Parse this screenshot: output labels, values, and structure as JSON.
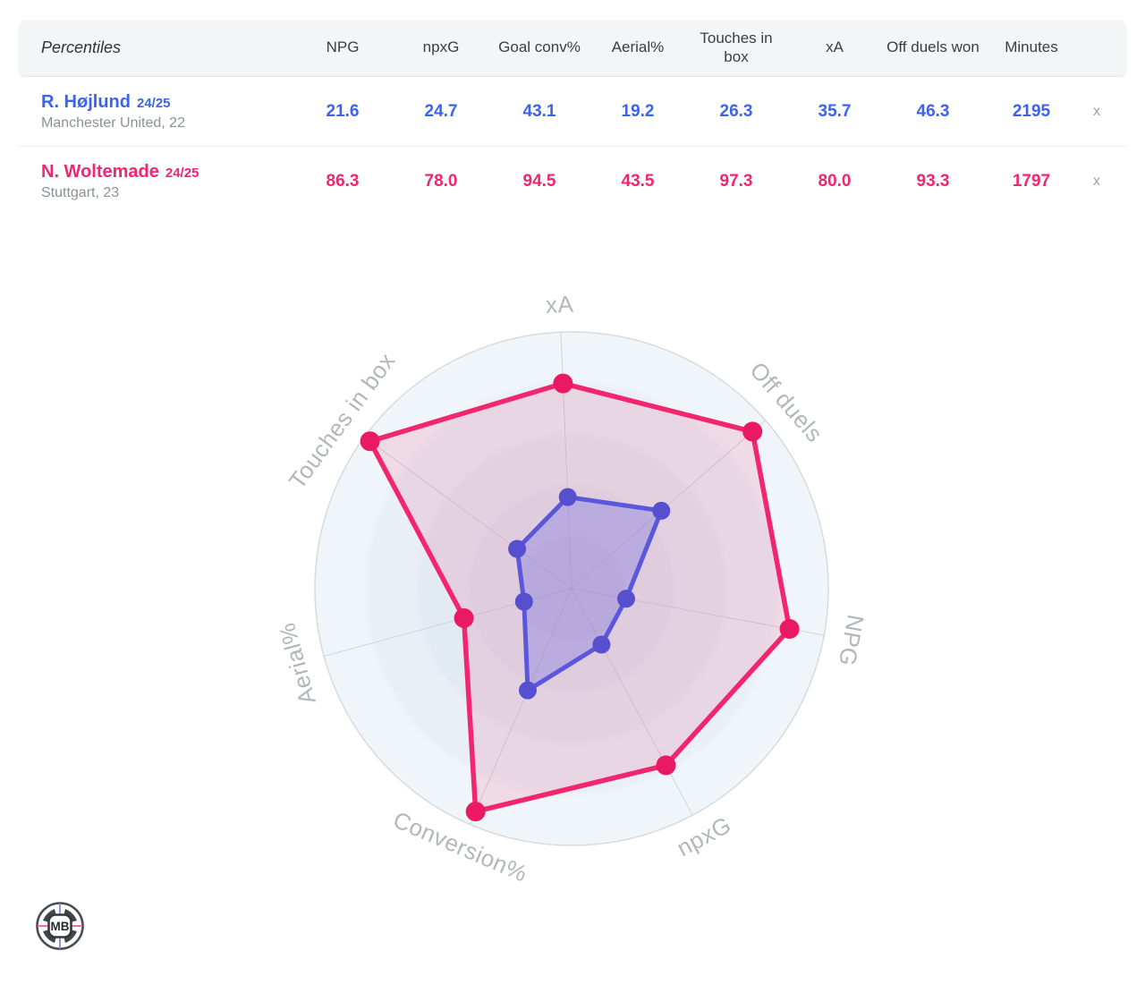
{
  "table": {
    "corner_label": "Percentiles",
    "columns": [
      "NPG",
      "npxG",
      "Goal conv%",
      "Aerial%",
      "Touches in box",
      "xA",
      "Off duels won",
      "Minutes"
    ],
    "remove_label": "x",
    "rows": [
      {
        "name": "R. Højlund",
        "season": "24/25",
        "subtitle": "Manchester United, 22",
        "color": "#3b63ee",
        "values": [
          "21.6",
          "24.7",
          "43.1",
          "19.2",
          "26.3",
          "35.7",
          "46.3",
          "2195"
        ]
      },
      {
        "name": "N. Woltemade",
        "season": "24/25",
        "subtitle": "Stuttgart, 23",
        "color": "#f2256f",
        "values": [
          "86.3",
          "78.0",
          "94.5",
          "43.5",
          "97.3",
          "80.0",
          "93.3",
          "1797"
        ]
      }
    ]
  },
  "chart_data": {
    "type": "radar",
    "title": "",
    "axes": [
      "xA",
      "Off duels",
      "NPG",
      "npxG",
      "Conversion%",
      "Aerial%",
      "Touches in box"
    ],
    "scale_min": 0,
    "scale_max": 100,
    "rings": 5,
    "rotation_deg": -2.4,
    "grid": "concentric-circles",
    "legend_position": "none",
    "axis_label_color": "#b3b6ba",
    "series": [
      {
        "name": "R. Højlund 24/25",
        "line_color": "#5b57dd",
        "marker_color": "#564fd0",
        "fill_color": "rgba(91,87,221,0.28)",
        "values": [
          35.7,
          46.3,
          21.6,
          24.7,
          43.1,
          19.2,
          26.3
        ]
      },
      {
        "name": "N. Woltemade 24/25",
        "line_color": "#f2256f",
        "marker_color": "#e91a63",
        "fill_color": "rgba(242,37,111,0.13)",
        "values": [
          80.0,
          93.3,
          86.3,
          78.0,
          94.5,
          43.5,
          97.3
        ]
      }
    ]
  },
  "logo": {
    "text": "MB"
  }
}
